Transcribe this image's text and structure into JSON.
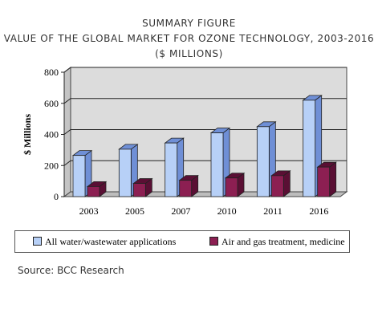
{
  "header": {
    "line1": "SUMMARY FIGURE",
    "line2": "VALUE OF THE GLOBAL MARKET FOR OZONE TECHNOLOGY, 2003-2016",
    "line3": "($ MILLIONS)"
  },
  "source": "Source: BCC Research",
  "colors": {
    "series1_front": "#b7d0f7",
    "series1_side": "#6f8fd6",
    "series2_front": "#8c1f52",
    "series2_side": "#5a0f34",
    "wall": "#dcdcdc"
  },
  "chart_data": {
    "type": "bar",
    "title": "VALUE OF THE GLOBAL MARKET FOR OZONE TECHNOLOGY, 2003-2016",
    "ylabel": "$ Millions",
    "xlabel": "",
    "categories": [
      "2003",
      "2005",
      "2007",
      "2010",
      "2011",
      "2016"
    ],
    "yticks": [
      "0",
      "200",
      "400",
      "600",
      "800"
    ],
    "ylim": [
      0,
      800
    ],
    "grid": true,
    "legend": "bottom",
    "series": [
      {
        "name": "All water/wastewater applications",
        "values": [
          265,
          305,
          345,
          410,
          450,
          620
        ]
      },
      {
        "name": "Air and gas treatment, medicine",
        "values": [
          65,
          85,
          105,
          120,
          135,
          190
        ]
      }
    ]
  }
}
